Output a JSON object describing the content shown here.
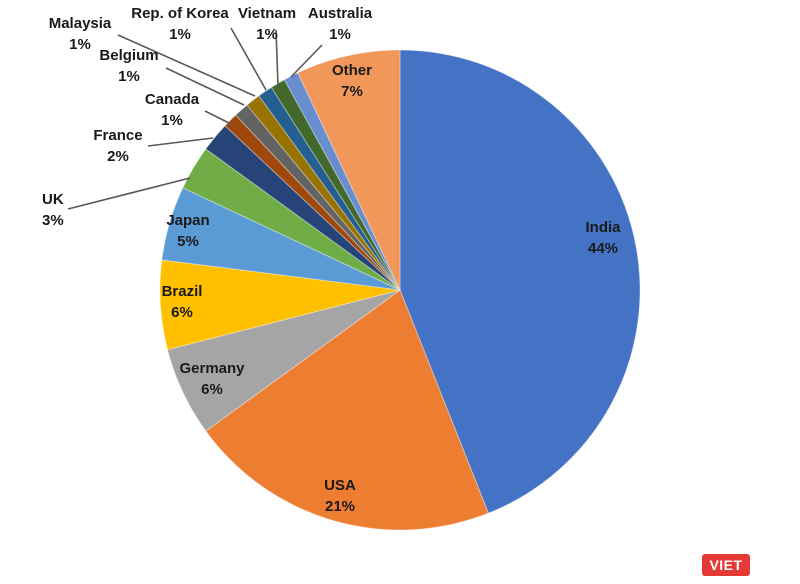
{
  "chart_data": {
    "type": "pie",
    "title": "",
    "data_labels_format": "percent",
    "slices": [
      {
        "name": "India",
        "value": 44,
        "label": "44%",
        "color": "#4472C4"
      },
      {
        "name": "USA",
        "value": 21,
        "label": "21%",
        "color": "#ED7D31"
      },
      {
        "name": "Germany",
        "value": 6,
        "label": "6%",
        "color": "#A5A5A5"
      },
      {
        "name": "Brazil",
        "value": 6,
        "label": "6%",
        "color": "#FFC000"
      },
      {
        "name": "Japan",
        "value": 5,
        "label": "5%",
        "color": "#5B9BD5"
      },
      {
        "name": "UK",
        "value": 3,
        "label": "3%",
        "color": "#70AD47"
      },
      {
        "name": "France",
        "value": 2,
        "label": "2%",
        "color": "#264478"
      },
      {
        "name": "Canada",
        "value": 1,
        "label": "1%",
        "color": "#9E480E"
      },
      {
        "name": "Belgium",
        "value": 1,
        "label": "1%",
        "color": "#636363"
      },
      {
        "name": "Malaysia",
        "value": 1,
        "label": "1%",
        "color": "#997300"
      },
      {
        "name": "Rep. of Korea",
        "value": 1,
        "label": "1%",
        "color": "#255E91"
      },
      {
        "name": "Vietnam",
        "value": 1,
        "label": "1%",
        "color": "#43682B"
      },
      {
        "name": "Australia",
        "value": 1,
        "label": "1%",
        "color": "#698ED0"
      },
      {
        "name": "Other",
        "value": 7,
        "label": "7%",
        "color": "#F1975A"
      }
    ]
  },
  "watermark": {
    "text": "VIET",
    "color": "#E53935"
  }
}
